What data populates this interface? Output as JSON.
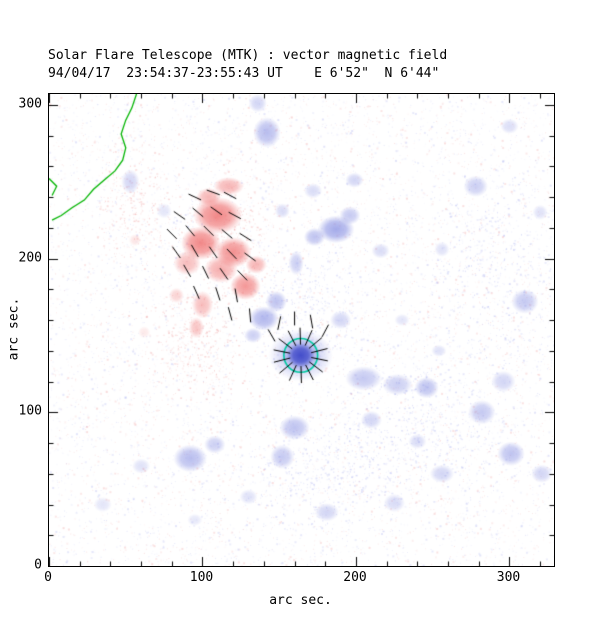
{
  "chart_data": {
    "type": "heatmap",
    "title": "Solar Flare Telescope (MTK) : vector magnetic field",
    "subtitle": "94/04/17  23:54:37-23:55:43 UT    E 6'52\"  N 6'44\"",
    "xlabel": "arc sec.",
    "ylabel": "arc sec.",
    "xlim": [
      0,
      329
    ],
    "ylim": [
      0,
      307
    ],
    "x_ticks": [
      "0",
      "100",
      "200",
      "300"
    ],
    "y_ticks": [
      "0",
      "100",
      "200",
      "300"
    ],
    "x_tick_values": [
      0,
      100,
      200,
      300
    ],
    "y_tick_values": [
      0,
      100,
      200,
      300
    ],
    "minor_tick_step": 20,
    "major_tick_len": 9,
    "minor_tick_len": 4.5,
    "colors": {
      "positive": "#ee6a6a",
      "negative": "#7d86e0",
      "negative_core": "#3c46c8",
      "contour": "#00c8a0",
      "limb": "#00b400",
      "vector": "#000000",
      "noise_positive": "#e87a7a",
      "noise_negative": "#8890e8",
      "axis": "#000000"
    },
    "positive_blobs": [
      [
        110,
        228,
        16,
        12,
        0.8
      ],
      [
        99,
        210,
        13,
        11,
        0.8
      ],
      [
        120,
        204,
        12,
        10,
        0.75
      ],
      [
        128,
        182,
        10,
        9,
        0.7
      ],
      [
        112,
        193,
        11,
        9,
        0.55
      ],
      [
        90,
        197,
        9,
        8,
        0.45
      ],
      [
        100,
        170,
        7,
        9,
        0.45
      ],
      [
        96,
        155,
        5,
        7,
        0.4
      ],
      [
        83,
        176,
        5,
        5,
        0.3
      ],
      [
        117,
        247,
        10,
        6,
        0.5
      ],
      [
        104,
        240,
        8,
        6,
        0.5
      ],
      [
        135,
        196,
        7,
        6,
        0.5
      ],
      [
        56,
        212,
        4,
        4,
        0.18
      ],
      [
        62,
        152,
        4,
        4,
        0.15
      ]
    ],
    "negative_blobs": [
      [
        164,
        137,
        21,
        17,
        0.45
      ],
      [
        164,
        137,
        13,
        11,
        0.6
      ],
      [
        187,
        219,
        12,
        9,
        0.7
      ],
      [
        173,
        214,
        7,
        6,
        0.5
      ],
      [
        196,
        228,
        7,
        6,
        0.45
      ],
      [
        161,
        197,
        5,
        8,
        0.4
      ],
      [
        140,
        161,
        10,
        8,
        0.6
      ],
      [
        148,
        172,
        7,
        7,
        0.5
      ],
      [
        133,
        150,
        6,
        5,
        0.4
      ],
      [
        205,
        122,
        12,
        8,
        0.45
      ],
      [
        227,
        118,
        10,
        7,
        0.4
      ],
      [
        246,
        116,
        8,
        7,
        0.5
      ],
      [
        160,
        90,
        10,
        8,
        0.5
      ],
      [
        152,
        71,
        8,
        8,
        0.45
      ],
      [
        92,
        70,
        11,
        9,
        0.55
      ],
      [
        108,
        79,
        7,
        6,
        0.4
      ],
      [
        142,
        282,
        9,
        10,
        0.55
      ],
      [
        136,
        301,
        6,
        6,
        0.35
      ],
      [
        278,
        247,
        8,
        7,
        0.4
      ],
      [
        310,
        172,
        9,
        8,
        0.45
      ],
      [
        296,
        120,
        8,
        7,
        0.35
      ],
      [
        282,
        100,
        9,
        8,
        0.45
      ],
      [
        301,
        73,
        9,
        8,
        0.5
      ],
      [
        321,
        60,
        7,
        6,
        0.35
      ],
      [
        256,
        60,
        8,
        6,
        0.35
      ],
      [
        225,
        41,
        7,
        6,
        0.3
      ],
      [
        181,
        35,
        8,
        6,
        0.35
      ],
      [
        53,
        250,
        6,
        8,
        0.35
      ],
      [
        75,
        231,
        5,
        5,
        0.22
      ],
      [
        199,
        251,
        6,
        5,
        0.35
      ],
      [
        216,
        205,
        6,
        5,
        0.3
      ],
      [
        256,
        206,
        5,
        5,
        0.25
      ],
      [
        300,
        286,
        6,
        5,
        0.28
      ],
      [
        190,
        160,
        7,
        6,
        0.35
      ],
      [
        210,
        95,
        7,
        6,
        0.35
      ],
      [
        240,
        81,
        6,
        5,
        0.3
      ],
      [
        172,
        244,
        6,
        5,
        0.3
      ],
      [
        152,
        231,
        5,
        5,
        0.3
      ],
      [
        254,
        140,
        5,
        4,
        0.25
      ],
      [
        230,
        160,
        5,
        4,
        0.22
      ],
      [
        320,
        230,
        5,
        5,
        0.25
      ],
      [
        60,
        65,
        6,
        5,
        0.25
      ],
      [
        35,
        40,
        6,
        5,
        0.22
      ],
      [
        130,
        45,
        6,
        5,
        0.25
      ],
      [
        95,
        30,
        5,
        4,
        0.2
      ]
    ],
    "sunspot": {
      "x": 164,
      "y": 137,
      "core_rx": 9,
      "core_ry": 8,
      "core_alpha": 0.92,
      "contour_r": 11,
      "spokes": {
        "count": 14,
        "inner_r": 7,
        "outer_r": 18,
        "angle_offset": 0.2
      }
    },
    "vectors": {
      "length_arcsec": 9,
      "items": [
        [
          95,
          240,
          -25
        ],
        [
          107,
          243,
          -20
        ],
        [
          118,
          241,
          -28
        ],
        [
          85,
          228,
          -35
        ],
        [
          97,
          230,
          -40
        ],
        [
          109,
          231,
          -35
        ],
        [
          121,
          228,
          -28
        ],
        [
          80,
          216,
          -45
        ],
        [
          92,
          218,
          -50
        ],
        [
          104,
          218,
          -45
        ],
        [
          116,
          216,
          -40
        ],
        [
          128,
          214,
          -32
        ],
        [
          83,
          204,
          -55
        ],
        [
          95,
          205,
          -60
        ],
        [
          107,
          204,
          -55
        ],
        [
          119,
          203,
          -46
        ],
        [
          131,
          201,
          -36
        ],
        [
          90,
          192,
          -60
        ],
        [
          102,
          191,
          -64
        ],
        [
          114,
          190,
          -55
        ],
        [
          126,
          189,
          -46
        ],
        [
          96,
          178,
          -66
        ],
        [
          110,
          177,
          -72
        ],
        [
          122,
          176,
          -80
        ],
        [
          131,
          163,
          -85
        ],
        [
          118,
          164,
          -75
        ],
        [
          150,
          158,
          78
        ],
        [
          160,
          161,
          90
        ],
        [
          171,
          159,
          100
        ],
        [
          180,
          153,
          62
        ],
        [
          145,
          150,
          120
        ]
      ]
    },
    "limb_contour": [
      [
        57,
        307
      ],
      [
        54,
        298
      ],
      [
        50,
        290
      ],
      [
        47,
        281
      ],
      [
        50,
        272
      ],
      [
        48,
        264
      ],
      [
        43,
        257
      ],
      [
        36,
        251
      ],
      [
        29,
        245
      ],
      [
        23,
        238
      ],
      [
        15,
        233
      ],
      [
        8,
        228
      ],
      [
        2,
        225
      ]
    ],
    "limb_edge_mark": [
      [
        0,
        252
      ],
      [
        5,
        247
      ],
      [
        2,
        241
      ]
    ],
    "noise": {
      "seed": 1234,
      "count": 9000,
      "blue_fraction": 0.56,
      "patches": [
        {
          "x": 95,
          "y": 145,
          "rx": 35,
          "ry": 40,
          "polarity": "pos",
          "count": 300
        },
        {
          "x": 55,
          "y": 240,
          "rx": 25,
          "ry": 45,
          "polarity": "pos",
          "count": 200
        },
        {
          "x": 115,
          "y": 215,
          "rx": 45,
          "ry": 45,
          "polarity": "pos",
          "count": 250
        },
        {
          "x": 240,
          "y": 90,
          "rx": 70,
          "ry": 60,
          "polarity": "neg",
          "count": 450
        },
        {
          "x": 290,
          "y": 200,
          "rx": 50,
          "ry": 70,
          "polarity": "neg",
          "count": 350
        },
        {
          "x": 180,
          "y": 60,
          "rx": 60,
          "ry": 40,
          "polarity": "neg",
          "count": 300
        },
        {
          "x": 170,
          "y": 170,
          "rx": 40,
          "ry": 40,
          "polarity": "neg",
          "count": 250
        }
      ]
    }
  }
}
